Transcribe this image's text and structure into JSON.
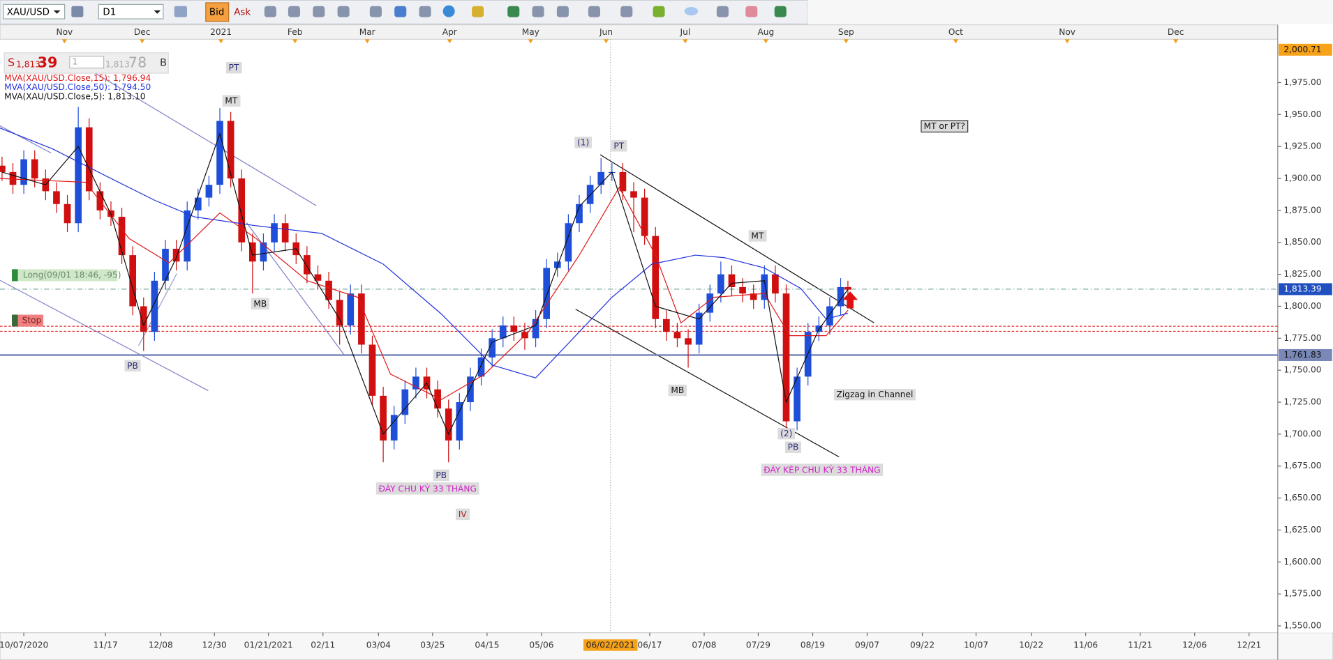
{
  "toolbar": {
    "symbol": "XAU/USD",
    "timeframe": "D1",
    "bid": "Bid",
    "ask": "Ask"
  },
  "order_panel": {
    "sell_label": "S",
    "sell_big": "1,813",
    "sell_pips": "39",
    "amount": "1",
    "buy_big": "1,813",
    "buy_pips": "78",
    "buy_label": "B"
  },
  "chart_data": {
    "type": "candlestick",
    "x": [
      -6,
      -3,
      0,
      3,
      6,
      9,
      12,
      15,
      18,
      21,
      24,
      27,
      30,
      33,
      36,
      39,
      42,
      45,
      48,
      51,
      54,
      57,
      60,
      63,
      66,
      69,
      72,
      75,
      78,
      81,
      84,
      87,
      90,
      93,
      96,
      99,
      102,
      105,
      108,
      111,
      114,
      117,
      120,
      123,
      126,
      129,
      132,
      135,
      138,
      141,
      144,
      147,
      150,
      153,
      156,
      159,
      162,
      165,
      168,
      171,
      174,
      177,
      180,
      183,
      186,
      189,
      192,
      195,
      198,
      201,
      204,
      207,
      210,
      213,
      216,
      219,
      222,
      225,
      227
    ],
    "open": [
      1910,
      1905,
      1895,
      1915,
      1900,
      1890,
      1880,
      1865,
      1940,
      1890,
      1875,
      1870,
      1840,
      1800,
      1780,
      1820,
      1845,
      1835,
      1875,
      1885,
      1895,
      1945,
      1900,
      1850,
      1835,
      1850,
      1865,
      1850,
      1840,
      1825,
      1820,
      1805,
      1785,
      1810,
      1770,
      1730,
      1695,
      1715,
      1735,
      1745,
      1735,
      1720,
      1695,
      1725,
      1745,
      1760,
      1775,
      1785,
      1780,
      1775,
      1790,
      1830,
      1835,
      1865,
      1880,
      1895,
      1905,
      1905,
      1890,
      1885,
      1855,
      1790,
      1780,
      1775,
      1770,
      1795,
      1810,
      1825,
      1815,
      1810,
      1805,
      1825,
      1810,
      1710,
      1745,
      1780,
      1785,
      1800,
      1815
    ],
    "high": [
      1917,
      1912,
      1922,
      1922,
      1907,
      1897,
      1887,
      1956,
      1947,
      1897,
      1882,
      1877,
      1847,
      1807,
      1827,
      1852,
      1852,
      1882,
      1892,
      1902,
      1955,
      1952,
      1907,
      1857,
      1857,
      1872,
      1872,
      1857,
      1847,
      1832,
      1827,
      1812,
      1817,
      1817,
      1777,
      1737,
      1722,
      1742,
      1752,
      1752,
      1742,
      1727,
      1732,
      1752,
      1767,
      1782,
      1792,
      1792,
      1787,
      1797,
      1837,
      1842,
      1872,
      1887,
      1902,
      1916,
      1912,
      1912,
      1897,
      1892,
      1862,
      1797,
      1787,
      1782,
      1802,
      1817,
      1835,
      1832,
      1822,
      1817,
      1832,
      1832,
      1817,
      1752,
      1787,
      1792,
      1807,
      1822,
      1820
    ],
    "low": [
      1898,
      1888,
      1888,
      1893,
      1883,
      1873,
      1858,
      1858,
      1883,
      1868,
      1863,
      1833,
      1793,
      1765,
      1773,
      1813,
      1828,
      1828,
      1868,
      1878,
      1888,
      1893,
      1843,
      1810,
      1828,
      1843,
      1843,
      1833,
      1818,
      1813,
      1798,
      1770,
      1778,
      1763,
      1723,
      1678,
      1688,
      1708,
      1728,
      1728,
      1713,
      1678,
      1688,
      1718,
      1738,
      1753,
      1768,
      1773,
      1766,
      1768,
      1783,
      1823,
      1828,
      1858,
      1873,
      1888,
      1898,
      1883,
      1858,
      1848,
      1783,
      1773,
      1768,
      1752,
      1763,
      1788,
      1803,
      1808,
      1803,
      1798,
      1798,
      1803,
      1703,
      1703,
      1738,
      1773,
      1778,
      1793,
      1806
    ],
    "close": [
      1905,
      1895,
      1915,
      1900,
      1890,
      1880,
      1865,
      1940,
      1890,
      1875,
      1870,
      1840,
      1800,
      1780,
      1820,
      1845,
      1835,
      1875,
      1885,
      1895,
      1945,
      1900,
      1850,
      1835,
      1850,
      1865,
      1850,
      1840,
      1825,
      1820,
      1805,
      1785,
      1810,
      1770,
      1730,
      1695,
      1715,
      1735,
      1745,
      1735,
      1720,
      1695,
      1725,
      1745,
      1760,
      1775,
      1785,
      1780,
      1775,
      1790,
      1830,
      1835,
      1865,
      1880,
      1895,
      1905,
      1905,
      1890,
      1885,
      1855,
      1790,
      1780,
      1775,
      1770,
      1795,
      1810,
      1825,
      1815,
      1810,
      1805,
      1825,
      1810,
      1710,
      1745,
      1780,
      1785,
      1800,
      1815,
      1813
    ],
    "up_color": "#1f4fd8",
    "down_color": "#d01010",
    "xlim": [
      -6.56,
      345.4
    ],
    "ylim": [
      1544.7,
      2008.9
    ],
    "xticks": [
      {
        "value": 0,
        "label": "10/07/2020"
      },
      {
        "value": 22.5,
        "label": "11/17"
      },
      {
        "value": 37.7,
        "label": "12/08"
      },
      {
        "value": 52.5,
        "label": "12/30"
      },
      {
        "value": 67.4,
        "label": "01/21/2021"
      },
      {
        "value": 82.4,
        "label": "02/11"
      },
      {
        "value": 97.7,
        "label": "03/04"
      },
      {
        "value": 112.6,
        "label": "03/25"
      },
      {
        "value": 127.6,
        "label": "04/15"
      },
      {
        "value": 142.6,
        "label": "05/06"
      },
      {
        "value": 172.4,
        "label": "06/17"
      },
      {
        "value": 187.4,
        "label": "07/08"
      },
      {
        "value": 202.3,
        "label": "07/29"
      },
      {
        "value": 217.3,
        "label": "08/19"
      },
      {
        "value": 232.3,
        "label": "09/07"
      },
      {
        "value": 247.5,
        "label": "09/22"
      },
      {
        "value": 262.3,
        "label": "10/07"
      },
      {
        "value": 277.5,
        "label": "10/22"
      },
      {
        "value": 292.5,
        "label": "11/06"
      },
      {
        "value": 307.5,
        "label": "11/21"
      },
      {
        "value": 322.5,
        "label": "12/06"
      },
      {
        "value": 337.5,
        "label": "12/21"
      }
    ],
    "month_ticks": [
      {
        "value": 11.2,
        "label": "Nov"
      },
      {
        "value": 32.6,
        "label": "Dec"
      },
      {
        "value": 54.3,
        "label": "2021"
      },
      {
        "value": 74.7,
        "label": "Feb"
      },
      {
        "value": 94.6,
        "label": "Mar"
      },
      {
        "value": 117.3,
        "label": "Apr"
      },
      {
        "value": 139.6,
        "label": "May"
      },
      {
        "value": 160.4,
        "label": "Jun"
      },
      {
        "value": 182.2,
        "label": "Jul"
      },
      {
        "value": 204.4,
        "label": "Aug"
      },
      {
        "value": 226.5,
        "label": "Sep"
      },
      {
        "value": 256.7,
        "label": "Oct"
      },
      {
        "value": 287.4,
        "label": "Nov"
      },
      {
        "value": 317.3,
        "label": "Dec"
      }
    ],
    "yticks": [
      {
        "value": 1550,
        "label": "1,550.00"
      },
      {
        "value": 1575,
        "label": "1,575.00"
      },
      {
        "value": 1600,
        "label": "1,600.00"
      },
      {
        "value": 1625,
        "label": "1,625.00"
      },
      {
        "value": 1650,
        "label": "1,650.00"
      },
      {
        "value": 1675,
        "label": "1,675.00"
      },
      {
        "value": 1700,
        "label": "1,700.00"
      },
      {
        "value": 1725,
        "label": "1,725.00"
      },
      {
        "value": 1750,
        "label": "1,750.00"
      },
      {
        "value": 1775,
        "label": "1,775.00"
      },
      {
        "value": 1800,
        "label": "1,800.00"
      },
      {
        "value": 1825,
        "label": "1,825.00"
      },
      {
        "value": 1850,
        "label": "1,850.00"
      },
      {
        "value": 1875,
        "label": "1,875.00"
      },
      {
        "value": 1900,
        "label": "1,900.00"
      },
      {
        "value": 1925,
        "label": "1,925.00"
      },
      {
        "value": 1950,
        "label": "1,950.00"
      },
      {
        "value": 1975,
        "label": "1,975.00"
      }
    ],
    "cursor": {
      "value": 161.6,
      "label": "06/02/2021"
    },
    "series": [
      {
        "name": "MVA(XAU/USD.Close,15): 1,796.94",
        "color": "#e01818",
        "x": [
          -7,
          17,
          29,
          40,
          54,
          64,
          78,
          92,
          101,
          115,
          127,
          139,
          153,
          164,
          174,
          181,
          190,
          204,
          211,
          221,
          227
        ],
        "values": [
          1900,
          1897,
          1853,
          1834,
          1873,
          1853,
          1820,
          1807,
          1747,
          1727,
          1747,
          1780,
          1840,
          1893,
          1840,
          1787,
          1807,
          1810,
          1777,
          1777,
          1796.94
        ]
      },
      {
        "name": "MVA(XAU/USD.Close,50): 1,794.50",
        "color": "#2233dd",
        "x": [
          -7,
          8,
          24,
          36,
          47,
          64,
          82,
          99,
          115,
          129,
          141,
          153,
          162,
          173,
          185,
          193,
          204,
          214,
          221,
          227
        ],
        "values": [
          1940,
          1923,
          1900,
          1883,
          1870,
          1863,
          1857,
          1833,
          1794,
          1754,
          1744,
          1780,
          1807,
          1833,
          1840,
          1838,
          1830,
          1814,
          1790,
          1794.5
        ]
      },
      {
        "name": "MVA(XAU/USD.Close,5): 1,813.10",
        "color": "#111111",
        "x": [
          -6,
          6,
          15,
          24,
          33,
          42,
          54,
          63,
          75,
          87,
          99,
          111,
          117,
          129,
          141,
          153,
          162,
          174,
          186,
          195,
          204,
          210,
          219,
          227
        ],
        "values": [
          1905,
          1895,
          1925,
          1872,
          1785,
          1838,
          1935,
          1840,
          1845,
          1790,
          1700,
          1740,
          1700,
          1772,
          1785,
          1878,
          1905,
          1800,
          1790,
          1818,
          1820,
          1725,
          1782,
          1813.1
        ]
      }
    ],
    "levels": [
      {
        "value": 2000.71,
        "label": "2,000.71",
        "color": "#f7a21b",
        "line": "none"
      },
      {
        "value": 1813.39,
        "label": "1,813.39",
        "color": "#2050c0",
        "line": "dashdot"
      },
      {
        "value": 1761.83,
        "label": "1,761.83",
        "color": "#7a88b8",
        "line": "solid"
      }
    ],
    "stop_lines": [
      {
        "value": 1784.4,
        "color": "#e03030"
      },
      {
        "value": 1780.4,
        "color": "#e03030"
      }
    ],
    "long_order": {
      "label": "Long(09/01 18:46, -95)",
      "value": 1824.3
    },
    "stop_order": {
      "label": "Stop",
      "value": 1788.8
    },
    "annotations": [
      "PT",
      "MT",
      "MB",
      "PB",
      "(1)",
      "PT",
      "MT",
      "MB",
      "PB",
      "ĐÁY CHU KỲ 33 THÁNG",
      "IV",
      "(2)",
      "PB",
      "ĐÁY KÉP CHU KỲ 33 THÁNG",
      "Zigzag in Channel",
      "MT or PT?"
    ]
  }
}
